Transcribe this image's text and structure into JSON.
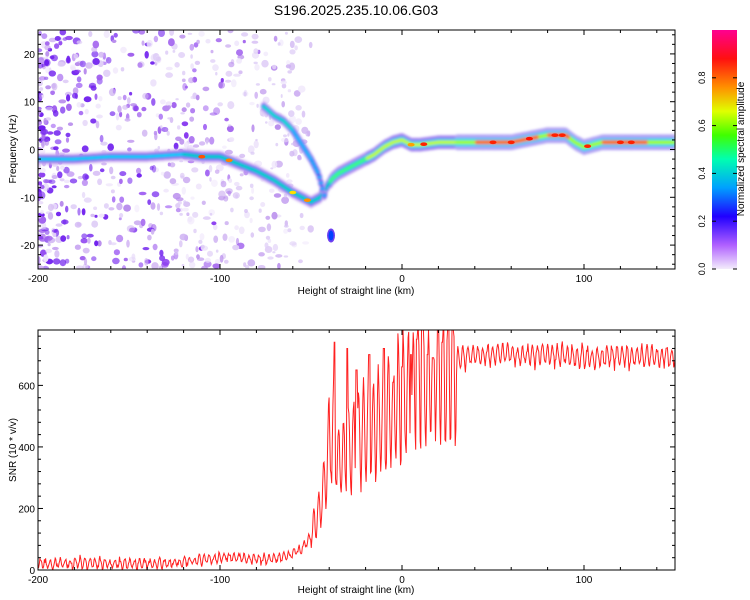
{
  "title": "S196.2025.235.10.06.G03",
  "chart_data": [
    {
      "type": "heatmap",
      "name": "spectrogram",
      "xlabel": "Height of straight line (km)",
      "ylabel": "Frequency (Hz)",
      "xlim": [
        -200,
        150
      ],
      "ylim": [
        -25,
        25
      ],
      "xticks": [
        -200,
        -100,
        0,
        100
      ],
      "yticks": [
        -20,
        -10,
        0,
        10,
        20
      ],
      "colorbar": {
        "label": "Normalized spectral amplitude",
        "range": [
          0,
          1
        ],
        "ticks": [
          0.0,
          0.2,
          0.4,
          0.6,
          0.8
        ],
        "tick_labels": [
          "0.0",
          "0.2",
          "0.4",
          "0.6",
          "0.8"
        ],
        "colormap": [
          "#e6d8f5",
          "#9b30ff",
          "#0000ff",
          "#00d0ff",
          "#00ff40",
          "#ffff00",
          "#ff8000",
          "#ff0000",
          "#ff0080"
        ]
      },
      "main_ridge": [
        [
          -200,
          -2
        ],
        [
          -180,
          -2
        ],
        [
          -160,
          -1.5
        ],
        [
          -140,
          -1.5
        ],
        [
          -120,
          -1
        ],
        [
          -110,
          -1.5
        ],
        [
          -100,
          -1.5
        ],
        [
          -90,
          -3
        ],
        [
          -80,
          -4.5
        ],
        [
          -70,
          -6.5
        ],
        [
          -60,
          -9
        ],
        [
          -55,
          -10
        ],
        [
          -50,
          -11
        ],
        [
          -45,
          -10
        ],
        [
          -40,
          -7
        ],
        [
          -38,
          -6
        ],
        [
          -35,
          -5
        ],
        [
          -30,
          -4
        ],
        [
          -25,
          -3
        ],
        [
          -20,
          -2
        ],
        [
          -15,
          -1
        ],
        [
          -10,
          0.5
        ],
        [
          -5,
          1.5
        ],
        [
          0,
          2
        ],
        [
          5,
          1
        ],
        [
          10,
          1
        ],
        [
          20,
          1.5
        ],
        [
          40,
          1.5
        ],
        [
          60,
          1.5
        ],
        [
          80,
          3
        ],
        [
          90,
          3
        ],
        [
          95,
          1.5
        ],
        [
          100,
          0.5
        ],
        [
          110,
          1.5
        ],
        [
          130,
          1.5
        ],
        [
          150,
          1.5
        ]
      ],
      "secondary_ridge": [
        [
          -76,
          9
        ],
        [
          -70,
          7
        ],
        [
          -65,
          6
        ],
        [
          -60,
          4
        ],
        [
          -55,
          1
        ],
        [
          -50,
          -2
        ],
        [
          -46,
          -5
        ],
        [
          -43,
          -9
        ],
        [
          -42,
          -11
        ]
      ],
      "isolated_blob": {
        "x": -39,
        "y": -18
      }
    },
    {
      "type": "line",
      "name": "snr",
      "xlabel": "Height of straight line (km)",
      "ylabel": "SNR (10 * v/v)",
      "xlim": [
        -200,
        150
      ],
      "ylim": [
        0,
        780
      ],
      "xticks": [
        -200,
        -100,
        0,
        100
      ],
      "yticks": [
        0,
        200,
        400,
        600
      ],
      "color": "#ff2020",
      "envelope": [
        [
          -200,
          20
        ],
        [
          -180,
          22
        ],
        [
          -160,
          20
        ],
        [
          -140,
          22
        ],
        [
          -120,
          25
        ],
        [
          -110,
          35
        ],
        [
          -100,
          40
        ],
        [
          -90,
          40
        ],
        [
          -80,
          35
        ],
        [
          -70,
          35
        ],
        [
          -60,
          50
        ],
        [
          -55,
          70
        ],
        [
          -50,
          110
        ],
        [
          -45,
          200
        ],
        [
          -42,
          300
        ],
        [
          -40,
          420
        ],
        [
          -38,
          450
        ],
        [
          -35,
          350
        ],
        [
          -30,
          380
        ],
        [
          -25,
          420
        ],
        [
          -20,
          450
        ],
        [
          -15,
          480
        ],
        [
          -10,
          500
        ],
        [
          -5,
          530
        ],
        [
          0,
          560
        ],
        [
          5,
          580
        ],
        [
          10,
          610
        ],
        [
          15,
          640
        ],
        [
          20,
          665
        ],
        [
          25,
          680
        ],
        [
          30,
          690
        ],
        [
          40,
          700
        ],
        [
          60,
          700
        ],
        [
          80,
          700
        ],
        [
          100,
          690
        ],
        [
          120,
          695
        ],
        [
          140,
          695
        ],
        [
          150,
          695
        ]
      ],
      "spikes": [
        [
          -37,
          740
        ],
        [
          -30,
          720
        ],
        [
          -25,
          650
        ],
        [
          -18,
          700
        ],
        [
          -10,
          720
        ],
        [
          -5,
          610
        ],
        [
          0,
          660
        ],
        [
          5,
          700
        ],
        [
          8,
          750
        ],
        [
          11,
          780
        ],
        [
          14,
          700
        ],
        [
          17,
          690
        ],
        [
          22,
          740
        ]
      ]
    }
  ]
}
